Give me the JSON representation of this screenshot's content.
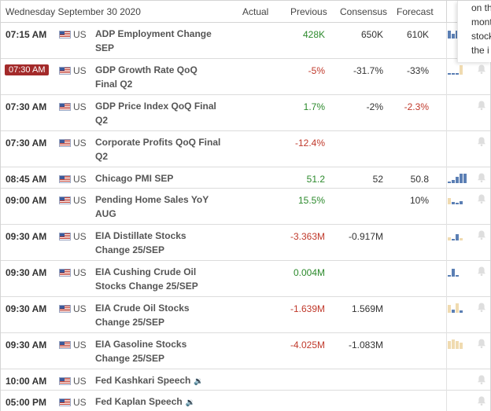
{
  "header": {
    "date": "Wednesday September 30 2020",
    "col_actual": "Actual",
    "col_previous": "Previous",
    "col_consensus": "Consensus",
    "col_forecast": "Forecast"
  },
  "tooltip": {
    "lines": [
      "on th",
      "mont",
      "stock",
      "the i"
    ]
  },
  "colors": {
    "green": "#2c8a2c",
    "red": "#c0392b",
    "highlight_badge": "#a32a2a"
  },
  "rows": [
    {
      "time": "07:15 AM",
      "country": "US",
      "event": "ADP Employment Change",
      "event2": "SEP",
      "actual": "",
      "previous": "428K",
      "previous_color": "green",
      "consensus": "650K",
      "forecast": "610K",
      "forecast_color": "plain",
      "highlight": false
    },
    {
      "time": "07:30 AM",
      "country": "US",
      "event": "GDP Growth Rate QoQ",
      "event2": "Final Q2",
      "actual": "",
      "previous": "-5%",
      "previous_color": "red",
      "consensus": "-31.7%",
      "forecast": "-33%",
      "forecast_color": "plain",
      "highlight": true
    },
    {
      "time": "07:30 AM",
      "country": "US",
      "event": "GDP Price Index QoQ Final",
      "event2": "Q2",
      "actual": "",
      "previous": "1.7%",
      "previous_color": "green",
      "consensus": "-2%",
      "forecast": "-2.3%",
      "forecast_color": "red",
      "highlight": false
    },
    {
      "time": "07:30 AM",
      "country": "US",
      "event": "Corporate Profits QoQ Final",
      "event2": "Q2",
      "actual": "",
      "previous": "-12.4%",
      "previous_color": "red",
      "consensus": "",
      "forecast": "",
      "forecast_color": "plain",
      "highlight": false
    },
    {
      "time": "08:45 AM",
      "country": "US",
      "event": "Chicago PMI SEP",
      "event2": "",
      "actual": "",
      "previous": "51.2",
      "previous_color": "green",
      "consensus": "52",
      "forecast": "50.8",
      "forecast_color": "plain",
      "highlight": false
    },
    {
      "time": "09:00 AM",
      "country": "US",
      "event": "Pending Home Sales YoY",
      "event2": "AUG",
      "actual": "",
      "previous": "15.5%",
      "previous_color": "green",
      "consensus": "",
      "forecast": "10%",
      "forecast_color": "plain",
      "highlight": false
    },
    {
      "time": "09:30 AM",
      "country": "US",
      "event": "EIA Distillate Stocks",
      "event2": "Change 25/SEP",
      "actual": "",
      "previous": "-3.363M",
      "previous_color": "red",
      "consensus": "-0.917M",
      "forecast": "",
      "forecast_color": "plain",
      "highlight": false
    },
    {
      "time": "09:30 AM",
      "country": "US",
      "event": "EIA Cushing Crude Oil",
      "event2": "Stocks Change 25/SEP",
      "actual": "",
      "previous": "0.004M",
      "previous_color": "green",
      "consensus": "",
      "forecast": "",
      "forecast_color": "plain",
      "highlight": false
    },
    {
      "time": "09:30 AM",
      "country": "US",
      "event": "EIA Crude Oil Stocks",
      "event2": "Change 25/SEP",
      "actual": "",
      "previous": "-1.639M",
      "previous_color": "red",
      "consensus": "1.569M",
      "forecast": "",
      "forecast_color": "plain",
      "highlight": false
    },
    {
      "time": "09:30 AM",
      "country": "US",
      "event": "EIA Gasoline Stocks",
      "event2": "Change 25/SEP",
      "actual": "",
      "previous": "-4.025M",
      "previous_color": "red",
      "consensus": "-1.083M",
      "forecast": "",
      "forecast_color": "plain",
      "highlight": false
    },
    {
      "time": "10:00 AM",
      "country": "US",
      "event": "Fed Kashkari Speech",
      "event2": "",
      "actual": "",
      "previous": "",
      "previous_color": "plain",
      "consensus": "",
      "forecast": "",
      "forecast_color": "plain",
      "highlight": false,
      "speech": true
    },
    {
      "time": "05:00 PM",
      "country": "US",
      "event": "Fed Kaplan Speech",
      "event2": "",
      "actual": "",
      "previous": "",
      "previous_color": "plain",
      "consensus": "",
      "forecast": "",
      "forecast_color": "plain",
      "highlight": false,
      "speech": true
    }
  ]
}
